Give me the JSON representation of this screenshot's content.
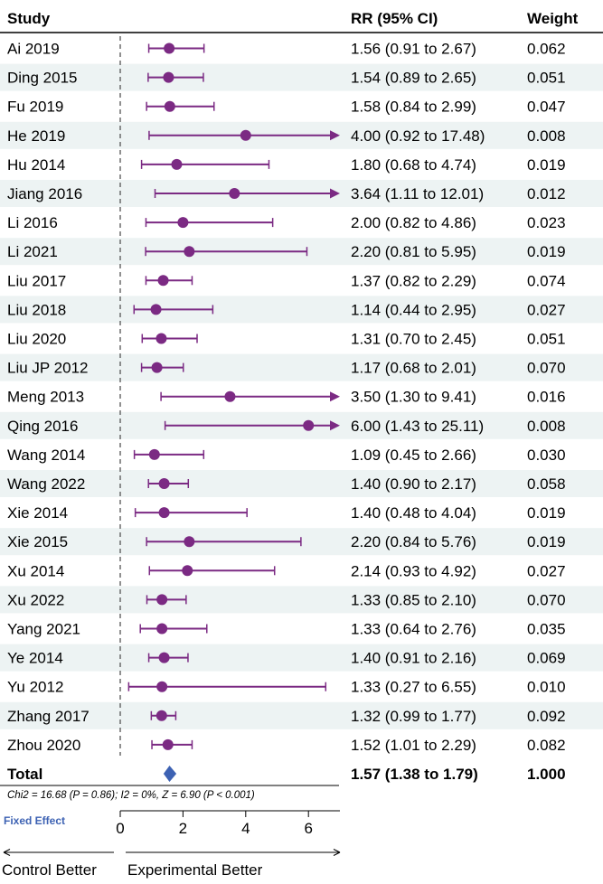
{
  "headers": {
    "study": "Study",
    "rr": "RR (95% CI)",
    "weight": "Weight"
  },
  "colors": {
    "marker": "#7b2a83",
    "summary": "#3d62b3",
    "stripe": "#edf3f3",
    "refline": "#555555"
  },
  "chart_data": {
    "type": "forest",
    "x_scale": "linear",
    "xlim": [
      0,
      7
    ],
    "xticks": [
      0,
      2,
      4,
      6
    ],
    "reference_value": 0,
    "studies": [
      {
        "name": "Ai 2019",
        "rr": 1.56,
        "lo": 0.91,
        "hi": 2.67,
        "ci_text": "1.56 (0.91 to 2.67)",
        "weight": "0.062"
      },
      {
        "name": "Ding 2015",
        "rr": 1.54,
        "lo": 0.89,
        "hi": 2.65,
        "ci_text": "1.54 (0.89 to 2.65)",
        "weight": "0.051"
      },
      {
        "name": "Fu 2019",
        "rr": 1.58,
        "lo": 0.84,
        "hi": 2.99,
        "ci_text": "1.58 (0.84 to 2.99)",
        "weight": "0.047"
      },
      {
        "name": "He 2019",
        "rr": 4.0,
        "lo": 0.92,
        "hi": 17.48,
        "ci_text": "4.00 (0.92 to 17.48)",
        "weight": "0.008"
      },
      {
        "name": "Hu 2014",
        "rr": 1.8,
        "lo": 0.68,
        "hi": 4.74,
        "ci_text": "1.80 (0.68 to 4.74)",
        "weight": "0.019"
      },
      {
        "name": "Jiang 2016",
        "rr": 3.64,
        "lo": 1.11,
        "hi": 12.01,
        "ci_text": "3.64 (1.11 to 12.01)",
        "weight": "0.012"
      },
      {
        "name": "Li 2016",
        "rr": 2.0,
        "lo": 0.82,
        "hi": 4.86,
        "ci_text": "2.00 (0.82 to 4.86)",
        "weight": "0.023"
      },
      {
        "name": "Li 2021",
        "rr": 2.2,
        "lo": 0.81,
        "hi": 5.95,
        "ci_text": "2.20 (0.81 to 5.95)",
        "weight": "0.019"
      },
      {
        "name": "Liu 2017",
        "rr": 1.37,
        "lo": 0.82,
        "hi": 2.29,
        "ci_text": "1.37 (0.82 to 2.29)",
        "weight": "0.074"
      },
      {
        "name": "Liu 2018",
        "rr": 1.14,
        "lo": 0.44,
        "hi": 2.95,
        "ci_text": "1.14 (0.44 to 2.95)",
        "weight": "0.027"
      },
      {
        "name": "Liu 2020",
        "rr": 1.31,
        "lo": 0.7,
        "hi": 2.45,
        "ci_text": "1.31 (0.70 to 2.45)",
        "weight": "0.051"
      },
      {
        "name": "Liu JP 2012",
        "rr": 1.17,
        "lo": 0.68,
        "hi": 2.01,
        "ci_text": "1.17 (0.68 to 2.01)",
        "weight": "0.070"
      },
      {
        "name": "Meng 2013",
        "rr": 3.5,
        "lo": 1.3,
        "hi": 9.41,
        "ci_text": "3.50 (1.30 to 9.41)",
        "weight": "0.016"
      },
      {
        "name": "Qing 2016",
        "rr": 6.0,
        "lo": 1.43,
        "hi": 25.11,
        "ci_text": "6.00 (1.43 to 25.11)",
        "weight": "0.008"
      },
      {
        "name": "Wang 2014",
        "rr": 1.09,
        "lo": 0.45,
        "hi": 2.66,
        "ci_text": "1.09 (0.45 to 2.66)",
        "weight": "0.030"
      },
      {
        "name": "Wang 2022",
        "rr": 1.4,
        "lo": 0.9,
        "hi": 2.17,
        "ci_text": "1.40 (0.90 to 2.17)",
        "weight": "0.058"
      },
      {
        "name": "Xie 2014",
        "rr": 1.4,
        "lo": 0.48,
        "hi": 4.04,
        "ci_text": "1.40 (0.48 to 4.04)",
        "weight": "0.019"
      },
      {
        "name": "Xie 2015",
        "rr": 2.2,
        "lo": 0.84,
        "hi": 5.76,
        "ci_text": "2.20 (0.84 to 5.76)",
        "weight": "0.019"
      },
      {
        "name": "Xu 2014",
        "rr": 2.14,
        "lo": 0.93,
        "hi": 4.92,
        "ci_text": "2.14 (0.93 to 4.92)",
        "weight": "0.027"
      },
      {
        "name": "Xu 2022",
        "rr": 1.33,
        "lo": 0.85,
        "hi": 2.1,
        "ci_text": "1.33 (0.85 to 2.10)",
        "weight": "0.070"
      },
      {
        "name": "Yang 2021",
        "rr": 1.33,
        "lo": 0.64,
        "hi": 2.76,
        "ci_text": "1.33 (0.64 to 2.76)",
        "weight": "0.035"
      },
      {
        "name": "Ye 2014",
        "rr": 1.4,
        "lo": 0.91,
        "hi": 2.16,
        "ci_text": "1.40 (0.91 to 2.16)",
        "weight": "0.069"
      },
      {
        "name": "Yu 2012",
        "rr": 1.33,
        "lo": 0.27,
        "hi": 6.55,
        "ci_text": "1.33 (0.27 to 6.55)",
        "weight": "0.010"
      },
      {
        "name": "Zhang 2017",
        "rr": 1.32,
        "lo": 0.99,
        "hi": 1.77,
        "ci_text": "1.32 (0.99 to 1.77)",
        "weight": "0.092"
      },
      {
        "name": "Zhou 2020",
        "rr": 1.52,
        "lo": 1.01,
        "hi": 2.29,
        "ci_text": "1.52 (1.01 to 2.29)",
        "weight": "0.082"
      }
    ],
    "total": {
      "name": "Total",
      "rr": 1.57,
      "lo": 1.38,
      "hi": 1.79,
      "ci_text": "1.57 (1.38 to 1.79)",
      "weight": "1.000"
    },
    "heterogeneity": "Chi2 = 16.68 (P = 0.86); I2 = 0%, Z = 6.90 (P < 0.001)",
    "model_label": "Fixed Effect",
    "favours_left": "Control Better",
    "favours_right": "Experimental Better"
  }
}
